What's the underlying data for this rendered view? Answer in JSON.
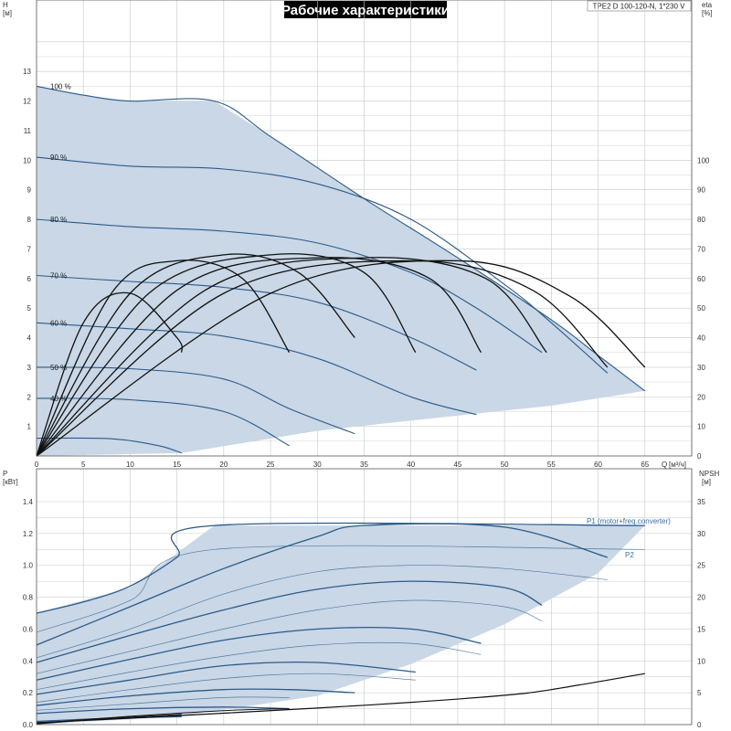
{
  "title": "Рабочие характеристики",
  "model": "TPE2 D 100-120-N, 1*230 V",
  "colors": {
    "envelope_fill": "#c9d7e6",
    "speed_curve": "#2c5a8a",
    "eff_curve": "#111111",
    "grid": "#c8c8c8",
    "frame": "#555555",
    "title_bg": "#000000"
  },
  "chart_data": [
    {
      "type": "line",
      "name": "head",
      "ylabel": "H",
      "yunit": "[м]",
      "y2label": "eta",
      "y2unit": "[%]",
      "xlabel": "Q",
      "xunit": "[м³/ч]",
      "xlim": [
        0,
        70
      ],
      "ylim": [
        0,
        14
      ],
      "y2lim": [
        0,
        100
      ],
      "x_ticks": [
        0,
        5,
        10,
        15,
        20,
        25,
        30,
        35,
        40,
        45,
        50,
        55,
        60,
        65
      ],
      "y_ticks": [
        1,
        2,
        3,
        4,
        5,
        6,
        7,
        8,
        9,
        10,
        11,
        12,
        13
      ],
      "y2_ticks": [
        0,
        10,
        20,
        30,
        40,
        50,
        60,
        70,
        80,
        90,
        100
      ],
      "grid": true,
      "envelope": [
        [
          0,
          12.5
        ],
        [
          5,
          12.2
        ],
        [
          10,
          12.0
        ],
        [
          19,
          12.0
        ],
        [
          25,
          10.8
        ],
        [
          35,
          8.7
        ],
        [
          45,
          6.7
        ],
        [
          55,
          4.6
        ],
        [
          60,
          3.4
        ],
        [
          65,
          2.2
        ],
        [
          55,
          1.7
        ],
        [
          40,
          1.2
        ],
        [
          30,
          0.85
        ],
        [
          15.5,
          0.1
        ],
        [
          0,
          0
        ]
      ],
      "series": [
        {
          "label": "100 %",
          "points": [
            [
              0,
              12.5
            ],
            [
              5,
              12.2
            ],
            [
              10,
              12.0
            ],
            [
              19,
              12.0
            ],
            [
              25,
              10.8
            ],
            [
              35,
              8.7
            ],
            [
              45,
              6.7
            ],
            [
              55,
              4.6
            ],
            [
              60,
              3.4
            ],
            [
              65,
              2.2
            ]
          ]
        },
        {
          "label": "90 %",
          "points": [
            [
              0,
              10.1
            ],
            [
              10,
              9.8
            ],
            [
              20,
              9.7
            ],
            [
              30,
              9.2
            ],
            [
              40,
              8.0
            ],
            [
              50,
              5.8
            ],
            [
              55,
              4.5
            ],
            [
              61,
              2.8
            ]
          ]
        },
        {
          "label": "80 %",
          "points": [
            [
              0,
              8.0
            ],
            [
              10,
              7.75
            ],
            [
              20,
              7.6
            ],
            [
              30,
              7.2
            ],
            [
              40,
              6.2
            ],
            [
              47,
              5.0
            ],
            [
              54,
              3.5
            ]
          ]
        },
        {
          "label": "70 %",
          "points": [
            [
              0,
              6.1
            ],
            [
              10,
              5.9
            ],
            [
              20,
              5.7
            ],
            [
              30,
              5.2
            ],
            [
              40,
              4.0
            ],
            [
              47,
              2.9
            ]
          ]
        },
        {
          "label": "60 %",
          "points": [
            [
              0,
              4.5
            ],
            [
              10,
              4.3
            ],
            [
              20,
              4.05
            ],
            [
              30,
              3.3
            ],
            [
              40,
              2.0
            ],
            [
              47,
              1.4
            ]
          ]
        },
        {
          "label": "50 %",
          "points": [
            [
              0,
              3.0
            ],
            [
              10,
              2.95
            ],
            [
              20,
              2.6
            ],
            [
              27,
              1.6
            ],
            [
              34,
              0.75
            ]
          ]
        },
        {
          "label": "40 %",
          "points": [
            [
              0,
              1.95
            ],
            [
              10,
              1.9
            ],
            [
              20,
              1.5
            ],
            [
              27,
              0.35
            ]
          ]
        },
        {
          "label": "",
          "points": [
            [
              0,
              0.6
            ],
            [
              8,
              0.58
            ],
            [
              13,
              0.35
            ],
            [
              15.5,
              0.1
            ]
          ]
        }
      ],
      "eff_series": [
        {
          "points": [
            [
              0,
              0
            ],
            [
              5,
              45
            ],
            [
              10,
              55
            ],
            [
              15,
              40
            ],
            [
              15.5,
              35
            ]
          ]
        },
        {
          "points": [
            [
              0,
              0
            ],
            [
              8,
              55
            ],
            [
              15,
              66
            ],
            [
              22,
              60
            ],
            [
              27,
              35
            ]
          ]
        },
        {
          "points": [
            [
              0,
              0
            ],
            [
              10,
              55
            ],
            [
              20,
              68
            ],
            [
              28,
              62
            ],
            [
              34,
              40
            ]
          ]
        },
        {
          "points": [
            [
              0,
              0
            ],
            [
              12,
              55
            ],
            [
              25,
              68
            ],
            [
              35,
              62
            ],
            [
              40.5,
              35
            ]
          ]
        },
        {
          "points": [
            [
              0,
              0
            ],
            [
              15,
              56
            ],
            [
              30,
              67
            ],
            [
              42,
              60
            ],
            [
              47.5,
              35
            ]
          ]
        },
        {
          "points": [
            [
              0,
              0
            ],
            [
              18,
              56
            ],
            [
              35,
              67
            ],
            [
              48,
              60
            ],
            [
              54.5,
              35
            ]
          ]
        },
        {
          "points": [
            [
              0,
              0
            ],
            [
              20,
              55
            ],
            [
              40,
              66
            ],
            [
              53,
              56
            ],
            [
              61,
              30
            ]
          ]
        },
        {
          "points": [
            [
              0,
              0
            ],
            [
              25,
              55
            ],
            [
              45,
              66
            ],
            [
              57,
              54
            ],
            [
              65,
              30
            ]
          ]
        }
      ]
    },
    {
      "type": "line",
      "name": "power",
      "ylabel": "P",
      "yunit": "[кВт]",
      "y2label": "NPSH",
      "y2unit": "[м]",
      "xlim": [
        0,
        70
      ],
      "ylim": [
        0,
        1.5
      ],
      "y2lim": [
        0,
        37.5
      ],
      "y_ticks": [
        0.0,
        0.2,
        0.4,
        0.6,
        0.8,
        1.0,
        1.2,
        1.4
      ],
      "y_tick_labels": [
        "0.0",
        "0.2",
        "0.4",
        "0.6",
        "0.8",
        "1.0",
        "1.2",
        "1.4"
      ],
      "y2_ticks": [
        0,
        5,
        10,
        15,
        20,
        25,
        30,
        35
      ],
      "grid": true,
      "legend": [
        "P1 (motor+freq.converter)",
        "P2"
      ],
      "envelope": [
        [
          0,
          0.7
        ],
        [
          10,
          0.86
        ],
        [
          19,
          1.25
        ],
        [
          65,
          1.25
        ],
        [
          60,
          0.95
        ],
        [
          50,
          0.63
        ],
        [
          40,
          0.38
        ],
        [
          30,
          0.18
        ],
        [
          15,
          0.05
        ],
        [
          0,
          0
        ]
      ],
      "p1_series": [
        {
          "points": [
            [
              0,
              0.7
            ],
            [
              5,
              0.77
            ],
            [
              10,
              0.87
            ],
            [
              15,
              1.05
            ],
            [
              19,
              1.25
            ],
            [
              65,
              1.25
            ]
          ]
        },
        {
          "points": [
            [
              0,
              0.5
            ],
            [
              10,
              0.74
            ],
            [
              20,
              0.98
            ],
            [
              30,
              1.18
            ],
            [
              35,
              1.25
            ],
            [
              50,
              1.24
            ],
            [
              61,
              1.05
            ]
          ]
        },
        {
          "points": [
            [
              0,
              0.39
            ],
            [
              10,
              0.56
            ],
            [
              20,
              0.72
            ],
            [
              30,
              0.85
            ],
            [
              40,
              0.9
            ],
            [
              50,
              0.86
            ],
            [
              54,
              0.75
            ]
          ]
        },
        {
          "points": [
            [
              0,
              0.28
            ],
            [
              10,
              0.41
            ],
            [
              20,
              0.53
            ],
            [
              30,
              0.6
            ],
            [
              40,
              0.6
            ],
            [
              47.5,
              0.51
            ]
          ]
        },
        {
          "points": [
            [
              0,
              0.19
            ],
            [
              10,
              0.28
            ],
            [
              20,
              0.37
            ],
            [
              30,
              0.39
            ],
            [
              40.5,
              0.33
            ]
          ]
        },
        {
          "points": [
            [
              0,
              0.12
            ],
            [
              10,
              0.18
            ],
            [
              20,
              0.22
            ],
            [
              27,
              0.22
            ],
            [
              34,
              0.2
            ]
          ]
        },
        {
          "points": [
            [
              0,
              0.07
            ],
            [
              10,
              0.1
            ],
            [
              20,
              0.11
            ],
            [
              27,
              0.1
            ]
          ]
        },
        {
          "points": [
            [
              0,
              0.02
            ],
            [
              8,
              0.04
            ],
            [
              15.5,
              0.05
            ]
          ]
        }
      ],
      "p2_series": [
        {
          "points": [
            [
              0,
              0.58
            ],
            [
              10,
              0.78
            ],
            [
              19,
              1.1
            ],
            [
              65,
              1.1
            ]
          ]
        },
        {
          "points": [
            [
              0,
              0.42
            ],
            [
              10,
              0.6
            ],
            [
              20,
              0.82
            ],
            [
              30,
              0.96
            ],
            [
              40,
              1.0
            ],
            [
              50,
              0.98
            ],
            [
              61,
              0.91
            ]
          ]
        },
        {
          "points": [
            [
              0,
              0.32
            ],
            [
              10,
              0.46
            ],
            [
              20,
              0.6
            ],
            [
              30,
              0.72
            ],
            [
              40,
              0.78
            ],
            [
              50,
              0.74
            ],
            [
              54,
              0.65
            ]
          ]
        },
        {
          "points": [
            [
              0,
              0.22
            ],
            [
              10,
              0.33
            ],
            [
              20,
              0.43
            ],
            [
              30,
              0.5
            ],
            [
              40,
              0.51
            ],
            [
              47.5,
              0.44
            ]
          ]
        },
        {
          "points": [
            [
              0,
              0.14
            ],
            [
              10,
              0.22
            ],
            [
              20,
              0.29
            ],
            [
              30,
              0.32
            ],
            [
              40.5,
              0.28
            ]
          ]
        },
        {
          "points": [
            [
              0,
              0.09
            ],
            [
              10,
              0.13
            ],
            [
              20,
              0.17
            ],
            [
              27,
              0.17
            ]
          ]
        }
      ],
      "npsh": {
        "points": [
          [
            0,
            0.3
          ],
          [
            10,
            1.0
          ],
          [
            20,
            1.8
          ],
          [
            30,
            2.6
          ],
          [
            40,
            3.5
          ],
          [
            50,
            4.6
          ],
          [
            55,
            5.5
          ],
          [
            65,
            8.0
          ]
        ]
      },
      "npsh_low": [
        {
          "points": [
            [
              0,
              0.2
            ],
            [
              10,
              1.3
            ],
            [
              20,
              2.2
            ],
            [
              27,
              2.5
            ]
          ]
        },
        {
          "points": [
            [
              0,
              0.1
            ],
            [
              8,
              1.0
            ],
            [
              15.5,
              1.6
            ]
          ]
        }
      ]
    }
  ]
}
